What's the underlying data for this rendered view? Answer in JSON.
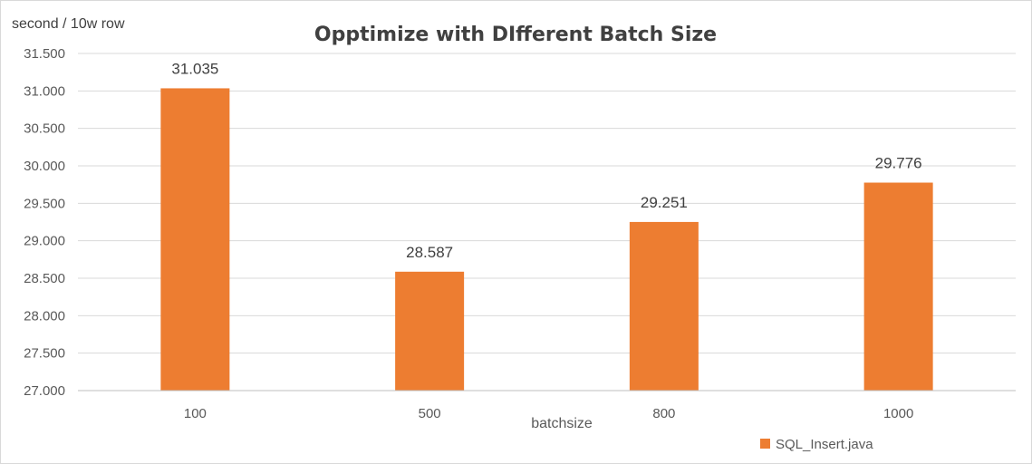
{
  "chart_data": {
    "type": "bar",
    "title": "Opptimize with DIfferent Batch Size",
    "xlabel": "batchsize",
    "ylabel": "second / 10w row",
    "categories": [
      "100",
      "500",
      "800",
      "1000"
    ],
    "series": [
      {
        "name": "SQL_Insert.java",
        "values": [
          31.035,
          28.587,
          29.251,
          29.776
        ],
        "data_labels": [
          "31.035",
          "28.587",
          "29.251",
          "29.776"
        ]
      }
    ],
    "ylim": [
      27.0,
      31.5
    ],
    "yticks": [
      "27.000",
      "27.500",
      "28.000",
      "28.500",
      "29.000",
      "29.500",
      "30.000",
      "30.500",
      "31.000",
      "31.500"
    ],
    "ytick_values": [
      27.0,
      27.5,
      28.0,
      28.5,
      29.0,
      29.5,
      30.0,
      30.5,
      31.0,
      31.5
    ],
    "grid": true,
    "legend_position": "bottom-right"
  },
  "colors": {
    "bar": "#ed7d31",
    "grid": "#d9d9d9",
    "axis": "#bfbfbf"
  }
}
